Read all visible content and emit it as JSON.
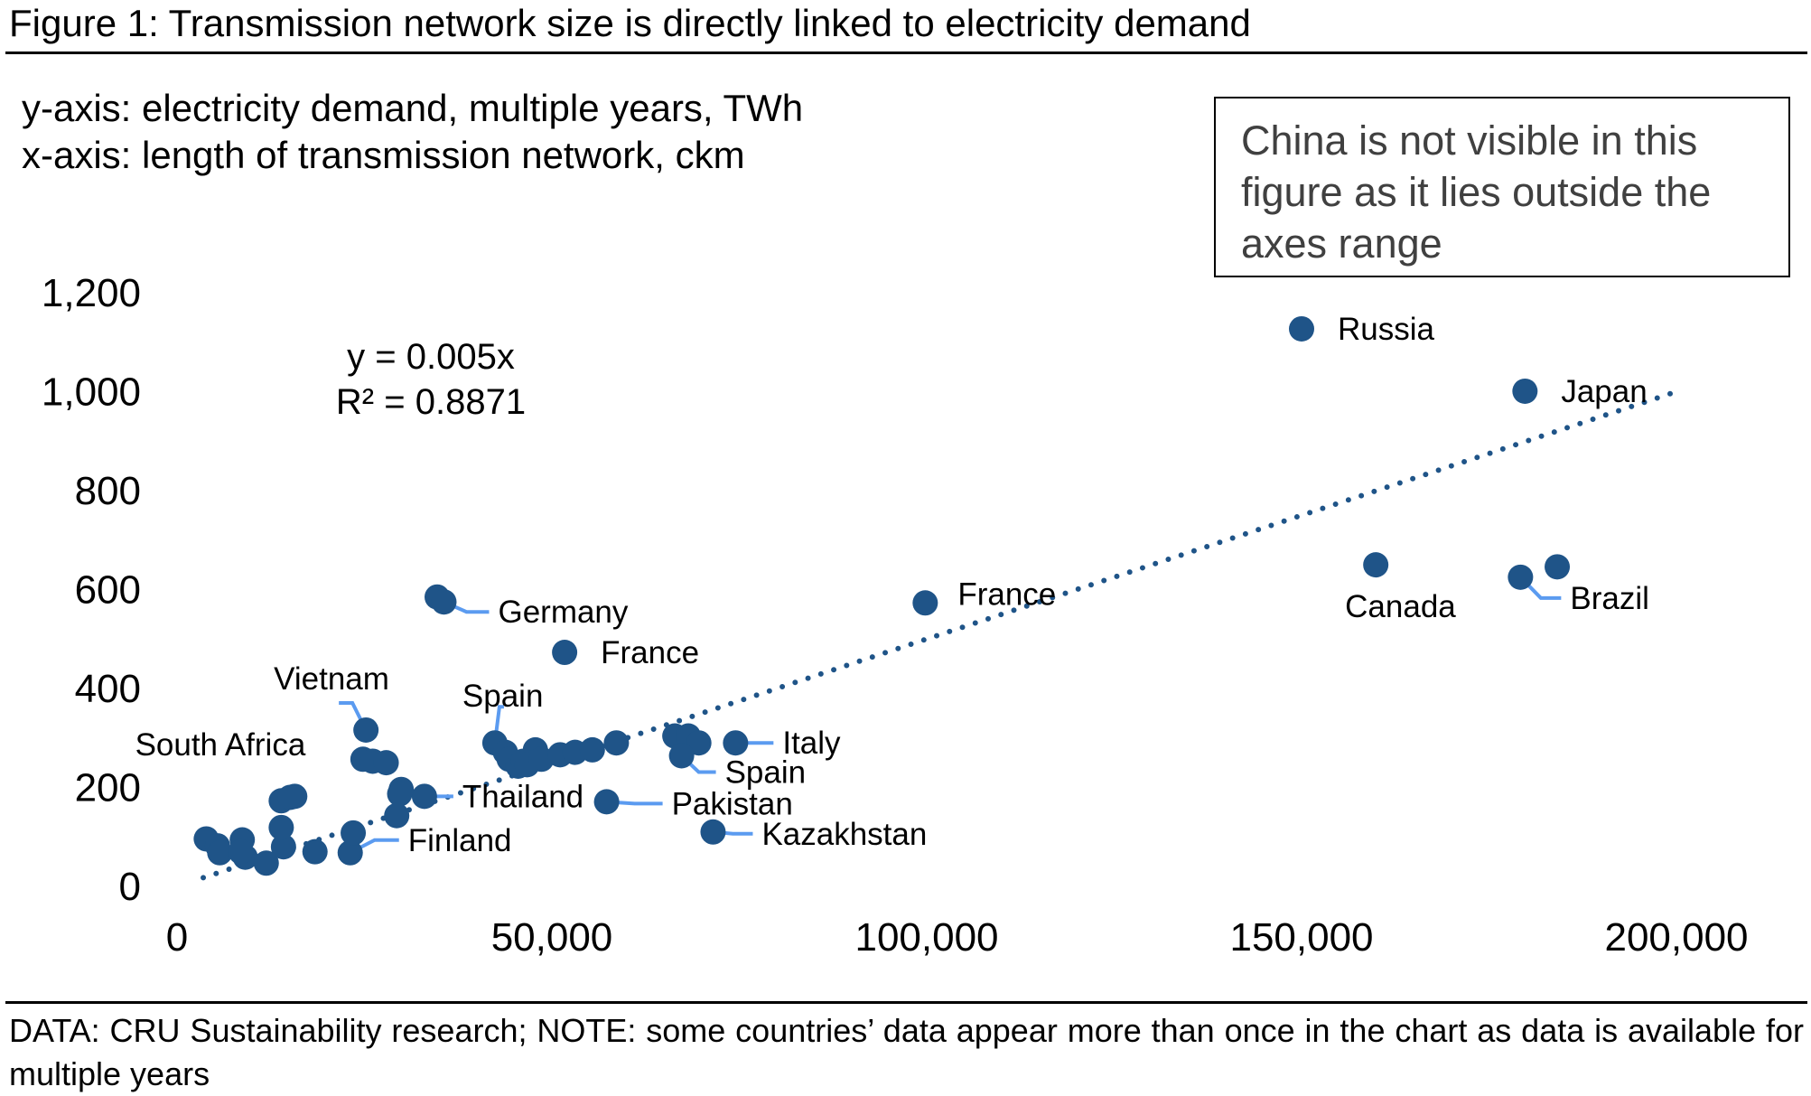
{
  "header": {
    "title": "Figure 1: Transmission network size is directly linked to electricity demand",
    "y_axis_note": "y-axis: electricity demand, multiple years, TWh",
    "x_axis_note": "x-axis: length of transmission network, ckm"
  },
  "callout": {
    "text": "China is not visible in this figure as it lies outside the axes range"
  },
  "footer": {
    "text": "DATA: CRU Sustainability research; NOTE: some countries’ data appear more than once in the chart as data is available for multiple years"
  },
  "colors": {
    "point": "#1F5488",
    "trendline": "#1F5488",
    "leader": "#5B9BF0"
  },
  "chart_data": {
    "type": "scatter",
    "title": "Transmission network size is directly linked to electricity demand",
    "xlabel": "length of transmission network, ckm",
    "ylabel": "electricity demand, multiple years, TWh",
    "xlim": [
      0,
      200000
    ],
    "ylim": [
      0,
      1200
    ],
    "x_ticks": [
      0,
      50000,
      100000,
      150000,
      200000
    ],
    "x_tick_labels": [
      "0",
      "50,000",
      "100,000",
      "150,000",
      "200,000"
    ],
    "y_ticks": [
      0,
      200,
      400,
      600,
      800,
      1000,
      1200
    ],
    "y_tick_labels": [
      "0",
      "200",
      "400",
      "600",
      "800",
      "1,000",
      "1,200"
    ],
    "grid": false,
    "legend": "none",
    "trendline": {
      "type": "linear-through-origin",
      "slope": 0.005,
      "x_range": [
        3500,
        200000
      ],
      "equation_label": "y = 0.005x",
      "r2_label": "R² = 0.8871"
    },
    "points": [
      {
        "x": 150000,
        "y": 1127
      },
      {
        "x": 179800,
        "y": 1001
      },
      {
        "x": 99800,
        "y": 573
      },
      {
        "x": 159900,
        "y": 650
      },
      {
        "x": 179200,
        "y": 625
      },
      {
        "x": 184100,
        "y": 646
      },
      {
        "x": 34700,
        "y": 585
      },
      {
        "x": 35600,
        "y": 575
      },
      {
        "x": 51700,
        "y": 473
      },
      {
        "x": 25200,
        "y": 316
      },
      {
        "x": 24800,
        "y": 257
      },
      {
        "x": 26100,
        "y": 253
      },
      {
        "x": 27900,
        "y": 250
      },
      {
        "x": 42400,
        "y": 290
      },
      {
        "x": 43800,
        "y": 271
      },
      {
        "x": 44300,
        "y": 257
      },
      {
        "x": 45500,
        "y": 243
      },
      {
        "x": 47800,
        "y": 276
      },
      {
        "x": 46200,
        "y": 253
      },
      {
        "x": 46700,
        "y": 246
      },
      {
        "x": 48600,
        "y": 257
      },
      {
        "x": 51100,
        "y": 266
      },
      {
        "x": 53100,
        "y": 271
      },
      {
        "x": 55400,
        "y": 276
      },
      {
        "x": 58600,
        "y": 290
      },
      {
        "x": 66400,
        "y": 304
      },
      {
        "x": 68200,
        "y": 304
      },
      {
        "x": 69600,
        "y": 290
      },
      {
        "x": 67300,
        "y": 264
      },
      {
        "x": 74500,
        "y": 290
      },
      {
        "x": 57300,
        "y": 171
      },
      {
        "x": 71500,
        "y": 110
      },
      {
        "x": 33000,
        "y": 182
      },
      {
        "x": 29900,
        "y": 196
      },
      {
        "x": 29700,
        "y": 187
      },
      {
        "x": 29300,
        "y": 143
      },
      {
        "x": 23100,
        "y": 68
      },
      {
        "x": 23500,
        "y": 108
      },
      {
        "x": 18400,
        "y": 70
      },
      {
        "x": 3900,
        "y": 96
      },
      {
        "x": 5400,
        "y": 82
      },
      {
        "x": 5700,
        "y": 68
      },
      {
        "x": 8700,
        "y": 94
      },
      {
        "x": 9100,
        "y": 59
      },
      {
        "x": 11900,
        "y": 47
      },
      {
        "x": 14200,
        "y": 80
      },
      {
        "x": 13900,
        "y": 119
      },
      {
        "x": 13900,
        "y": 173
      },
      {
        "x": 15700,
        "y": 182
      },
      {
        "x": 15100,
        "y": 180
      },
      {
        "x": 8500,
        "y": 70
      }
    ],
    "annotations": [
      {
        "text": "Russia",
        "x": 150000,
        "y": 1127
      },
      {
        "text": "Japan",
        "x": 179800,
        "y": 1001
      },
      {
        "text": "France",
        "x": 99800,
        "y": 573
      },
      {
        "text": "Canada",
        "x": 159900,
        "y": 650
      },
      {
        "text": "Brazil",
        "x": 179200,
        "y": 625
      },
      {
        "text": "Germany",
        "x": 35600,
        "y": 575
      },
      {
        "text": "France",
        "x": 51700,
        "y": 473
      },
      {
        "text": "Vietnam",
        "x": 25200,
        "y": 316
      },
      {
        "text": "South Africa",
        "x": 27900,
        "y": 250
      },
      {
        "text": "Spain",
        "x": 42400,
        "y": 290
      },
      {
        "text": "Italy",
        "x": 74500,
        "y": 290
      },
      {
        "text": "Spain",
        "x": 67300,
        "y": 264
      },
      {
        "text": "Pakistan",
        "x": 57300,
        "y": 171
      },
      {
        "text": "Thailand",
        "x": 33000,
        "y": 182
      },
      {
        "text": "Kazakhstan",
        "x": 71500,
        "y": 110
      },
      {
        "text": "Finland",
        "x": 23100,
        "y": 68
      }
    ]
  }
}
